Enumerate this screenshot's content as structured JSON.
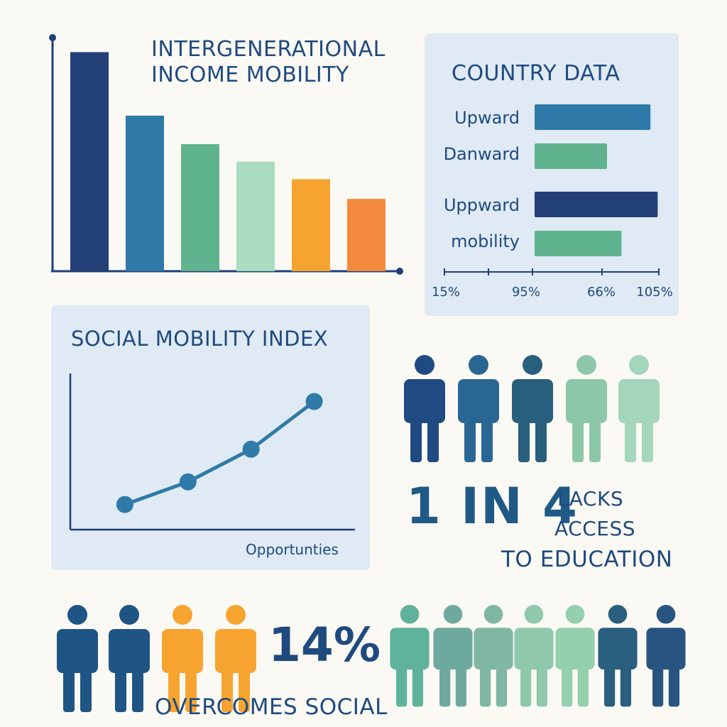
{
  "colors": {
    "navy": "#233f77",
    "steel_blue": "#2f7aa8",
    "teal": "#5fb38f",
    "mint": "#a9dcc0",
    "amber": "#f6a42f",
    "orange": "#f3893c",
    "axis": "#1f3f7a",
    "text": "#1f4a7e",
    "panel": "#dfeaf4"
  },
  "income_mobility": {
    "title_line1": "INTERGENERATIONAL",
    "title_line2": "INCOME MOBILITY"
  },
  "country_data": {
    "title": "COUNTRY DATA"
  },
  "social_mobility": {
    "title": "SOCIAL  MOBILITY INDEX",
    "xlabel": "Opportunties"
  },
  "stat_education": {
    "number": "1 IN 4",
    "line1": "LACKS",
    "line2": "ACCESS",
    "line3": "TO EDUCATION"
  },
  "stat_social": {
    "number": "14%",
    "label": "OVERCOMES SOCIAL"
  },
  "icons": {
    "people_top": [
      "#1f4a82",
      "#2a6693",
      "#285f7c",
      "#8dc7aa",
      "#a4d6bb"
    ],
    "people_bottom_left": [
      "#1f5584",
      "#1f5584",
      "#f6a42f",
      "#f6a42f"
    ],
    "people_bottom_right": [
      "#5fb39a",
      "#6ea9a0",
      "#80b7a4",
      "#8fc8ac",
      "#94cfae",
      "#2a5f80",
      "#28557f"
    ]
  },
  "chart_data": [
    {
      "type": "bar",
      "title": "INTERGENERATIONAL INCOME MOBILITY",
      "categories": [
        "",
        "",
        "",
        "",
        "",
        ""
      ],
      "values": [
        100,
        71,
        58,
        50,
        42,
        33
      ],
      "ylim": [
        0,
        105
      ],
      "colors": [
        "#233f77",
        "#2f7aa8",
        "#5fb38f",
        "#a9dcc0",
        "#f6a42f",
        "#f3893c"
      ]
    },
    {
      "type": "bar",
      "orientation": "horizontal",
      "title": "COUNTRY DATA",
      "categories": [
        "Upward",
        "Danward",
        "Uppward",
        "mobility"
      ],
      "values": [
        48,
        30,
        51,
        36
      ],
      "colors": [
        "#2f7aa8",
        "#5fb38f",
        "#233f77",
        "#5fb38f"
      ],
      "tick_labels": [
        "15%",
        "95%",
        "66%",
        "105%"
      ]
    },
    {
      "type": "line",
      "title": "SOCIAL  MOBILITY INDEX",
      "xlabel": "Opportunties",
      "x": [
        1,
        2,
        3,
        4
      ],
      "y": [
        1.0,
        1.9,
        3.2,
        5.1
      ],
      "xlim": [
        0,
        4.5
      ],
      "ylim": [
        0,
        6.5
      ]
    }
  ]
}
